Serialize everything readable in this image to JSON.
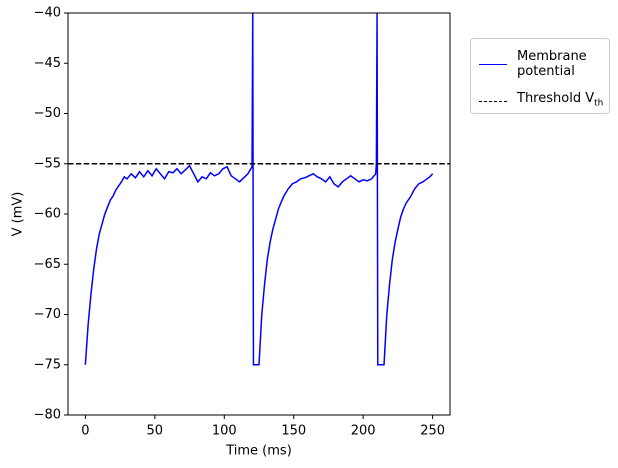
{
  "chart_data": {
    "type": "line",
    "xlabel": "Time (ms)",
    "ylabel": "V (mV)",
    "xlim": [
      -12.5,
      262.5
    ],
    "xticks": [
      0,
      50,
      100,
      150,
      200,
      250
    ],
    "ylim": [
      -80,
      -40
    ],
    "yticks": [
      {
        "value": -80,
        "label": "−80"
      },
      {
        "value": -75,
        "label": "−75"
      },
      {
        "value": -70,
        "label": "−70"
      },
      {
        "value": -65,
        "label": "−65"
      },
      {
        "value": -60,
        "label": "−60"
      },
      {
        "value": -55,
        "label": "−55"
      },
      {
        "value": -50,
        "label": "−50"
      },
      {
        "value": -45,
        "label": "−45"
      },
      {
        "value": -40,
        "label": "−40"
      }
    ],
    "legend": "outside right",
    "series": [
      {
        "name": "Membrane\npotential",
        "color": "#0000ff",
        "x": [
          0,
          2,
          4,
          6,
          8,
          10,
          12,
          14,
          16,
          18,
          20,
          22,
          24,
          26,
          28,
          30,
          33,
          36,
          39,
          42,
          45,
          48,
          51,
          54,
          57,
          60,
          63,
          66,
          69,
          72,
          75,
          78,
          81,
          84,
          87,
          90,
          93,
          96,
          99,
          102,
          105,
          108,
          111,
          114,
          117,
          120,
          120.5,
          121,
          125,
          127,
          129,
          131,
          133,
          135,
          137,
          139,
          141,
          143,
          146,
          149,
          152,
          155,
          158,
          161,
          164,
          167,
          170,
          173,
          176,
          179,
          182,
          185,
          188,
          191,
          194,
          197,
          200,
          203,
          206,
          209,
          209.5,
          210,
          210.5,
          215,
          217,
          219,
          221,
          223,
          225,
          227,
          229,
          231,
          234,
          237,
          240,
          243,
          246,
          248,
          250
        ],
        "values": [
          -75,
          -71,
          -68,
          -65.5,
          -63.5,
          -62,
          -61,
          -60,
          -59.3,
          -58.6,
          -58.2,
          -57.6,
          -57.2,
          -56.8,
          -56.3,
          -56.5,
          -56,
          -56.4,
          -55.8,
          -56.3,
          -55.7,
          -56.2,
          -55.5,
          -56,
          -56.5,
          -55.8,
          -55.9,
          -55.5,
          -56,
          -55.6,
          -55.2,
          -56,
          -56.8,
          -56.3,
          -56.5,
          -55.9,
          -56.2,
          -56,
          -55.5,
          -55.3,
          -56.2,
          -56.5,
          -56.8,
          -56.4,
          -56,
          -55.3,
          -40,
          -75,
          -75,
          -70,
          -67,
          -64.5,
          -62.8,
          -61.5,
          -60.5,
          -59.5,
          -58.8,
          -58.2,
          -57.5,
          -57,
          -56.8,
          -56.5,
          -56.4,
          -56.2,
          -56,
          -56.3,
          -56.5,
          -56.8,
          -56.3,
          -57,
          -57.3,
          -56.8,
          -56.5,
          -56.2,
          -56.5,
          -56.8,
          -56.6,
          -56.7,
          -56.5,
          -56,
          -55,
          -40,
          -75,
          -75,
          -70,
          -67,
          -64.5,
          -62.8,
          -61.5,
          -60.3,
          -59.5,
          -58.9,
          -58.3,
          -57.5,
          -57,
          -56.8,
          -56.5,
          -56.3,
          -56
        ]
      }
    ],
    "threshold": {
      "name": [
        "Threshold V",
        "th"
      ],
      "value": -55,
      "color": "#000000",
      "style": "dashed"
    }
  }
}
